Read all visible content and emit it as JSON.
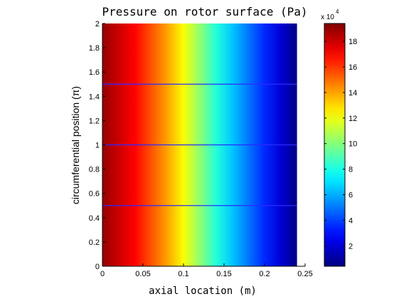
{
  "chart_data": {
    "type": "heatmap",
    "title": "Pressure on rotor surface (Pa)",
    "xlabel": "axial location (m)",
    "ylabel": "circumferential position (π)",
    "xlim": [
      0,
      0.25
    ],
    "ylim": [
      0,
      2
    ],
    "x_ticks": [
      "0",
      "0.05",
      "0.1",
      "0.15",
      "0.2",
      "0.25"
    ],
    "y_ticks": [
      "0",
      "0.2",
      "0.4",
      "0.6",
      "0.8",
      "1",
      "1.2",
      "1.4",
      "1.6",
      "1.8",
      "2"
    ],
    "data_extent": {
      "x": [
        0,
        0.24
      ],
      "y": [
        0,
        2
      ]
    },
    "colormap": "jet",
    "pressure_profile": {
      "x": [
        0,
        0.02,
        0.04,
        0.06,
        0.08,
        0.1,
        0.12,
        0.14,
        0.16,
        0.18,
        0.2,
        0.22,
        0.24
      ],
      "values": [
        190000,
        180000,
        170000,
        155000,
        140000,
        122000,
        102000,
        82000,
        65000,
        50000,
        35000,
        20000,
        5000
      ]
    },
    "reference_lines_y": [
      0.5,
      1.0,
      1.5
    ],
    "reference_line_color": "#2b2bff",
    "colorbar": {
      "multiplier": "x 10",
      "exponent": "4",
      "tick_values": [
        2,
        4,
        6,
        8,
        10,
        12,
        14,
        16,
        18
      ],
      "ticks": [
        "2",
        "4",
        "6",
        "8",
        "10",
        "12",
        "14",
        "16",
        "18"
      ],
      "range": [
        0.4,
        19.4
      ]
    }
  }
}
